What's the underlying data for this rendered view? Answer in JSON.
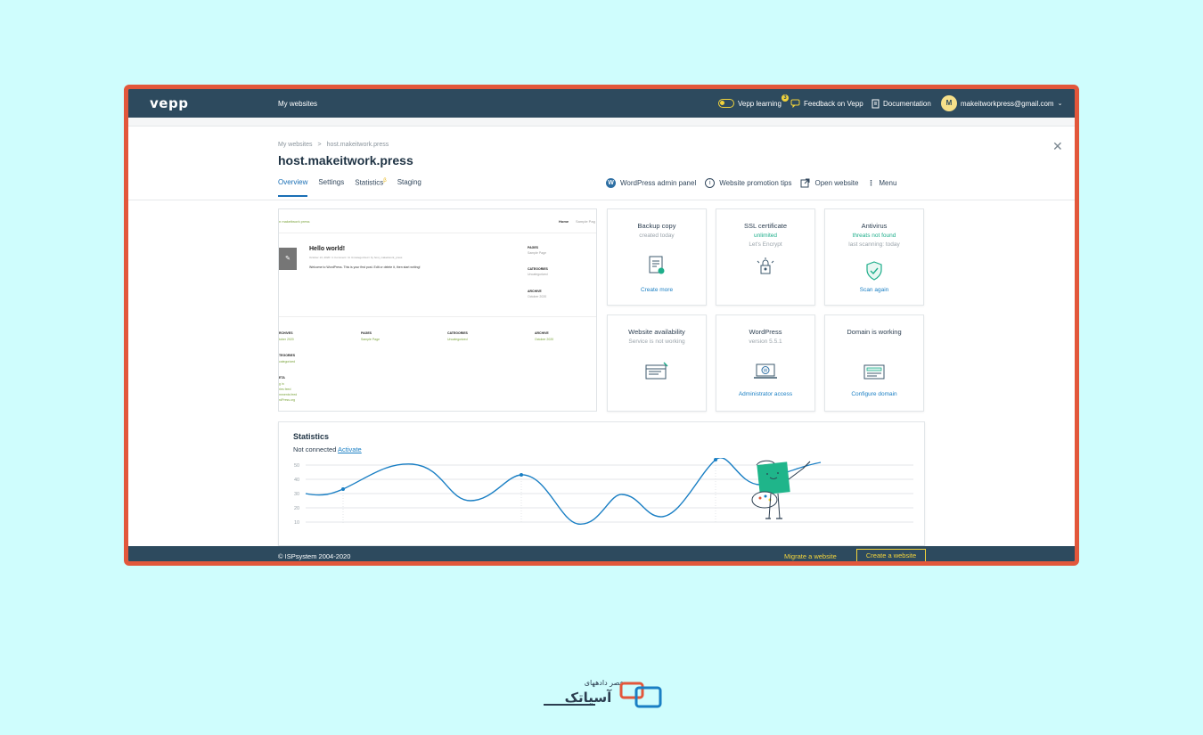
{
  "topbar": {
    "logo": "vepp",
    "my_websites": "My websites",
    "learning": "Vepp learning",
    "learning_badge": "3",
    "feedback": "Feedback on Vepp",
    "documentation": "Documentation",
    "avatar_letter": "M",
    "email": "makeitworkpress@gmail.com"
  },
  "breadcrumb": {
    "root": "My websites",
    "sep": ">",
    "current": "host.makeitwork.press"
  },
  "title": "host.makeitwork.press",
  "tabs": [
    "Overview",
    "Settings",
    "Statistics",
    "Staging"
  ],
  "tab_statistics_mark": "β",
  "actions": {
    "wp_admin": "WordPress admin panel",
    "promotion": "Website promotion tips",
    "open": "Open website",
    "menu": "Menu"
  },
  "preview": {
    "site_name": "n makeitwork press",
    "nav_home": "Home",
    "nav_sample": "Sample Pag",
    "post_title": "Hello world!",
    "post_meta": "October 13, 2020 / 1 Comment / In Uncategorized / by host_makeitwork_press",
    "post_body": "Welcome to WordPress. This is your first post. Edit or delete it, then start writing!",
    "side": [
      {
        "h": "PAGES",
        "v": "Sample Page"
      },
      {
        "h": "CATEGORIES",
        "v": "Uncategorized"
      },
      {
        "h": "ARCHIVE",
        "v": "October 2020"
      }
    ],
    "footer_cols": [
      {
        "h": "RCHIVES",
        "v": "tober 2020"
      },
      {
        "h": "PAGES",
        "v": "Sample Page"
      },
      {
        "h": "CATEGORIES",
        "v": "Uncategorized"
      },
      {
        "h": "ARCHIVE",
        "v": "October 2020"
      }
    ],
    "categories_h": "TEGORIES",
    "categories_v": "categorized",
    "meta_h": "ETA",
    "meta_v": [
      "g in",
      "ries feed",
      "mments feed",
      "rdPress.org"
    ]
  },
  "cards": {
    "backup": {
      "title": "Backup copy",
      "sub": "created today",
      "link": "Create more"
    },
    "ssl": {
      "title": "SSL certificate",
      "sub": "unlimited",
      "sub2": "Let's Encrypt"
    },
    "antivirus": {
      "title": "Antivirus",
      "sub": "threats not found",
      "sub2": "last scanning: today",
      "link": "Scan again"
    },
    "availability": {
      "title": "Website availability",
      "sub": "Service is not working"
    },
    "wordpress": {
      "title": "WordPress",
      "sub": "version 5.5.1",
      "link": "Administrator access"
    },
    "domain": {
      "title": "Domain is working",
      "link": "Configure domain"
    }
  },
  "statistics": {
    "title": "Statistics",
    "status": "Not connected",
    "activate": "Activate",
    "y_ticks": [
      "50",
      "40",
      "30",
      "20",
      "10"
    ]
  },
  "footer": {
    "copyright": "© ISPsystem 2004-2020",
    "migrate": "Migrate a website",
    "create": "Create a website"
  },
  "watermark": {
    "line1": "عصر دادههای",
    "line2": "آسیاتک"
  },
  "colors": {
    "border": "#e2573b",
    "topbar": "#2d4a5e",
    "accent": "#1a7fc4",
    "green": "#1fae8b",
    "yellow": "#f2d33b"
  }
}
